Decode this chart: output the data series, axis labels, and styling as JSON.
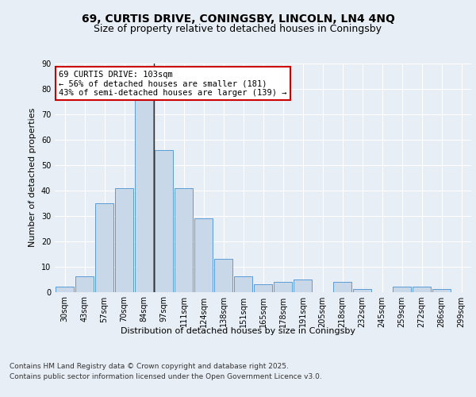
{
  "title_line1": "69, CURTIS DRIVE, CONINGSBY, LINCOLN, LN4 4NQ",
  "title_line2": "Size of property relative to detached houses in Coningsby",
  "xlabel": "Distribution of detached houses by size in Coningsby",
  "ylabel": "Number of detached properties",
  "categories": [
    "30sqm",
    "43sqm",
    "57sqm",
    "70sqm",
    "84sqm",
    "97sqm",
    "111sqm",
    "124sqm",
    "138sqm",
    "151sqm",
    "165sqm",
    "178sqm",
    "191sqm",
    "205sqm",
    "218sqm",
    "232sqm",
    "245sqm",
    "259sqm",
    "272sqm",
    "286sqm",
    "299sqm"
  ],
  "values": [
    2,
    6,
    35,
    41,
    76,
    56,
    41,
    29,
    13,
    6,
    3,
    4,
    5,
    0,
    4,
    1,
    0,
    2,
    2,
    1,
    0
  ],
  "bar_color": "#c8d8e8",
  "bar_edge_color": "#5b9bd5",
  "highlight_line_color": "#333333",
  "annotation_text": "69 CURTIS DRIVE: 103sqm\n← 56% of detached houses are smaller (181)\n43% of semi-detached houses are larger (139) →",
  "annotation_box_color": "#ffffff",
  "annotation_box_edge_color": "#cc0000",
  "ylim": [
    0,
    90
  ],
  "yticks": [
    0,
    10,
    20,
    30,
    40,
    50,
    60,
    70,
    80,
    90
  ],
  "background_color": "#e8eef5",
  "plot_background": "#e8eef5",
  "grid_color": "#ffffff",
  "footer_line1": "Contains HM Land Registry data © Crown copyright and database right 2025.",
  "footer_line2": "Contains public sector information licensed under the Open Government Licence v3.0.",
  "title_fontsize": 10,
  "subtitle_fontsize": 9,
  "axis_label_fontsize": 8,
  "tick_fontsize": 7,
  "annotation_fontsize": 7.5,
  "footer_fontsize": 6.5,
  "line_x_index": 4
}
